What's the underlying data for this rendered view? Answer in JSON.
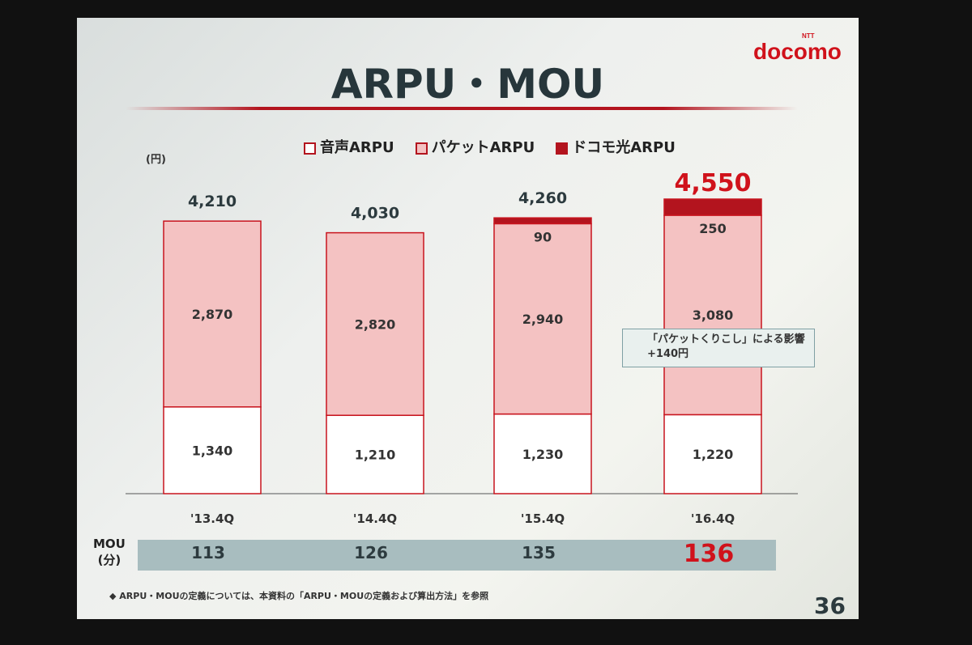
{
  "slide": {
    "title": "ARPU・MOU",
    "logo": "docomo",
    "logo_small": "NTT",
    "unit": "(円)",
    "page": "36",
    "footnote": "◆ ARPU・MOUの定義については、本資料の「ARPU・MOUの定義および算出方法」を参照",
    "callout": {
      "line1": "「パケットくりこし」による影響",
      "line2": "+140円"
    },
    "mou": {
      "label1": "MOU",
      "label2": "(分)",
      "values": [
        "113",
        "126",
        "135",
        "136"
      ]
    }
  },
  "colors": {
    "voice": "#ffffff",
    "packet": "#f4c2c2",
    "hikari": "#b3141e",
    "border": "#c8141e",
    "highlight": "#d0121b"
  },
  "chart_data": {
    "type": "bar",
    "stacked": true,
    "categories": [
      "'13.4Q",
      "'14.4Q",
      "'15.4Q",
      "'16.4Q"
    ],
    "legend": [
      "音声ARPU",
      "パケットARPU",
      "ドコモ光ARPU"
    ],
    "legend_position": "top",
    "series": [
      {
        "name": "音声ARPU",
        "values": [
          1340,
          1210,
          1230,
          1220
        ]
      },
      {
        "name": "パケットARPU",
        "values": [
          2870,
          2820,
          2940,
          3080
        ]
      },
      {
        "name": "ドコモ光ARPU",
        "values": [
          0,
          0,
          90,
          250
        ]
      }
    ],
    "totals": [
      4210,
      4030,
      4260,
      4550
    ],
    "total_labels": [
      "4,210",
      "4,030",
      "4,260",
      "4,550"
    ],
    "labels": [
      [
        "1,340",
        "2,870",
        ""
      ],
      [
        "1,210",
        "2,820",
        ""
      ],
      [
        "1,230",
        "2,940",
        "90"
      ],
      [
        "1,220",
        "3,080",
        "250"
      ]
    ],
    "ylabel": "(円)",
    "ylim": [
      0,
      4600
    ],
    "grid": false
  }
}
